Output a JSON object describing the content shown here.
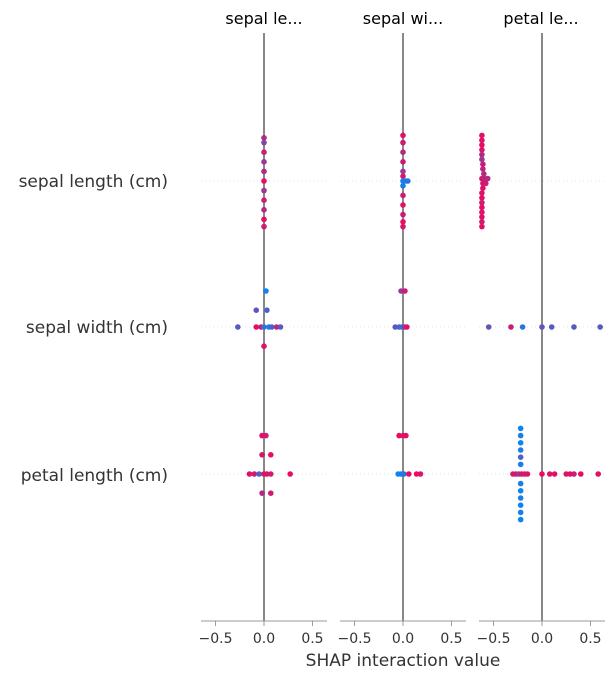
{
  "chart_data": {
    "type": "scatter",
    "xlabel": "SHAP interaction value",
    "xlim": [
      -0.65,
      0.65
    ],
    "xticks": [
      -0.5,
      0.0,
      0.5
    ],
    "tick_labels": [
      "−0.5",
      "0.0",
      "0.5"
    ],
    "row_labels": [
      "sepal length (cm)",
      "sepal width (cm)",
      "petal length (cm)"
    ],
    "panel_titles": [
      "sepal le...",
      "sepal wi...",
      "petal le..."
    ],
    "colors": {
      "high": "#ff0051",
      "low": "#008bfb",
      "axis": "#999999",
      "zero": "#888888",
      "text": "#333333"
    },
    "cells": [
      [
        {
          "points": [
            [
              0.0,
              0.9,
              0.7
            ],
            [
              0.0,
              0.8,
              0.5
            ],
            [
              0.0,
              0.6,
              0.8
            ],
            [
              0.0,
              0.4,
              0.6
            ],
            [
              0.0,
              0.2,
              0.7
            ],
            [
              0.0,
              0.0,
              0.9
            ],
            [
              0.0,
              -0.2,
              0.6
            ],
            [
              0.0,
              -0.4,
              0.8
            ],
            [
              0.0,
              -0.6,
              0.7
            ],
            [
              0.0,
              -0.8,
              0.9
            ],
            [
              0.0,
              -0.95,
              0.8
            ]
          ]
        },
        {
          "points": [
            [
              0.02,
              0.75,
              0.05
            ],
            [
              -0.08,
              0.35,
              0.4
            ],
            [
              0.03,
              0.35,
              0.3
            ],
            [
              -0.27,
              0.0,
              0.35
            ],
            [
              -0.08,
              0.0,
              0.9
            ],
            [
              -0.03,
              0.0,
              0.8
            ],
            [
              0.0,
              0.0,
              0.2
            ],
            [
              0.05,
              0.0,
              0.1
            ],
            [
              0.08,
              0.0,
              0.3
            ],
            [
              0.13,
              0.0,
              0.7
            ],
            [
              0.17,
              0.0,
              0.4
            ],
            [
              0.0,
              -0.4,
              0.85
            ]
          ]
        },
        {
          "points": [
            [
              -0.02,
              0.8,
              0.9
            ],
            [
              0.02,
              0.8,
              0.8
            ],
            [
              -0.02,
              0.4,
              0.85
            ],
            [
              0.07,
              0.4,
              0.9
            ],
            [
              -0.15,
              0.0,
              0.9
            ],
            [
              -0.1,
              0.0,
              0.8
            ],
            [
              -0.05,
              0.0,
              0.3
            ],
            [
              0.0,
              0.0,
              0.85
            ],
            [
              0.03,
              0.0,
              0.9
            ],
            [
              0.07,
              0.0,
              0.8
            ],
            [
              0.27,
              0.0,
              0.9
            ],
            [
              -0.02,
              -0.4,
              0.7
            ],
            [
              0.07,
              -0.4,
              0.8
            ]
          ]
        }
      ],
      [
        {
          "points": [
            [
              0.0,
              0.95,
              0.9
            ],
            [
              0.0,
              0.8,
              0.8
            ],
            [
              0.0,
              0.6,
              0.7
            ],
            [
              0.0,
              0.4,
              0.8
            ],
            [
              0.0,
              0.2,
              0.6
            ],
            [
              0.0,
              0.1,
              0.85
            ],
            [
              0.0,
              0.0,
              0.05
            ],
            [
              0.03,
              0.0,
              0.1
            ],
            [
              0.05,
              0.0,
              0.15
            ],
            [
              0.0,
              -0.1,
              0.1
            ],
            [
              0.0,
              -0.3,
              0.8
            ],
            [
              0.0,
              -0.5,
              0.9
            ],
            [
              0.0,
              -0.7,
              0.8
            ],
            [
              0.0,
              -0.85,
              0.9
            ],
            [
              0.0,
              -0.95,
              0.85
            ]
          ]
        },
        {
          "points": [
            [
              -0.02,
              0.75,
              0.6
            ],
            [
              0.02,
              0.75,
              0.8
            ],
            [
              -0.08,
              0.0,
              0.35
            ],
            [
              -0.04,
              0.0,
              0.3
            ],
            [
              -0.01,
              0.0,
              0.2
            ],
            [
              0.02,
              0.0,
              0.7
            ],
            [
              0.04,
              0.0,
              0.85
            ]
          ]
        },
        {
          "points": [
            [
              -0.04,
              0.8,
              0.9
            ],
            [
              0.0,
              0.8,
              0.85
            ],
            [
              0.03,
              0.8,
              0.9
            ],
            [
              -0.05,
              0.0,
              0.05
            ],
            [
              -0.02,
              0.0,
              0.1
            ],
            [
              0.01,
              0.0,
              0.15
            ],
            [
              0.06,
              0.0,
              0.9
            ],
            [
              0.14,
              0.0,
              0.9
            ],
            [
              0.18,
              0.0,
              0.85
            ]
          ]
        }
      ],
      [
        {
          "points": [
            [
              -0.62,
              0.95,
              0.9
            ],
            [
              -0.62,
              0.85,
              0.85
            ],
            [
              -0.62,
              0.75,
              0.9
            ],
            [
              -0.62,
              0.65,
              0.85
            ],
            [
              -0.62,
              0.55,
              0.7
            ],
            [
              -0.62,
              0.45,
              0.6
            ],
            [
              -0.61,
              0.35,
              0.8
            ],
            [
              -0.61,
              0.25,
              0.75
            ],
            [
              -0.6,
              0.15,
              0.7
            ],
            [
              -0.62,
              0.05,
              0.8
            ],
            [
              -0.59,
              0.05,
              0.75
            ],
            [
              -0.56,
              0.05,
              0.7
            ],
            [
              -0.61,
              -0.05,
              0.85
            ],
            [
              -0.58,
              -0.05,
              0.8
            ],
            [
              -0.61,
              -0.15,
              0.9
            ],
            [
              -0.62,
              -0.25,
              0.85
            ],
            [
              -0.62,
              -0.35,
              0.9
            ],
            [
              -0.62,
              -0.45,
              0.8
            ],
            [
              -0.62,
              -0.55,
              0.9
            ],
            [
              -0.62,
              -0.65,
              0.85
            ],
            [
              -0.62,
              -0.75,
              0.9
            ],
            [
              -0.62,
              -0.85,
              0.8
            ],
            [
              -0.62,
              -0.95,
              0.9
            ]
          ]
        },
        {
          "points": [
            [
              -0.55,
              0.0,
              0.4
            ],
            [
              -0.32,
              0.0,
              0.8
            ],
            [
              -0.2,
              0.0,
              0.15
            ],
            [
              0.0,
              0.0,
              0.4
            ],
            [
              0.1,
              0.0,
              0.35
            ],
            [
              0.33,
              0.0,
              0.35
            ],
            [
              0.6,
              0.0,
              0.35
            ]
          ]
        },
        {
          "points": [
            [
              -0.22,
              0.95,
              0.05
            ],
            [
              -0.22,
              0.8,
              0.1
            ],
            [
              -0.22,
              0.65,
              0.05
            ],
            [
              -0.22,
              0.5,
              0.1
            ],
            [
              -0.22,
              0.35,
              0.3
            ],
            [
              -0.22,
              0.2,
              0.1
            ],
            [
              -0.3,
              0.0,
              0.8
            ],
            [
              -0.27,
              0.0,
              0.85
            ],
            [
              -0.24,
              0.0,
              0.6
            ],
            [
              -0.21,
              0.0,
              0.9
            ],
            [
              -0.18,
              0.0,
              0.8
            ],
            [
              -0.15,
              0.0,
              0.85
            ],
            [
              0.0,
              0.0,
              0.9
            ],
            [
              0.08,
              0.0,
              0.85
            ],
            [
              0.13,
              0.0,
              0.9
            ],
            [
              0.25,
              0.0,
              0.85
            ],
            [
              0.29,
              0.0,
              0.9
            ],
            [
              0.33,
              0.0,
              0.8
            ],
            [
              0.4,
              0.0,
              0.9
            ],
            [
              0.58,
              0.0,
              0.9
            ],
            [
              -0.22,
              -0.2,
              0.1
            ],
            [
              -0.22,
              -0.35,
              0.05
            ],
            [
              -0.22,
              -0.5,
              0.1
            ],
            [
              -0.22,
              -0.65,
              0.05
            ],
            [
              -0.22,
              -0.8,
              0.1
            ],
            [
              -0.22,
              -0.95,
              0.05
            ]
          ]
        }
      ]
    ]
  }
}
